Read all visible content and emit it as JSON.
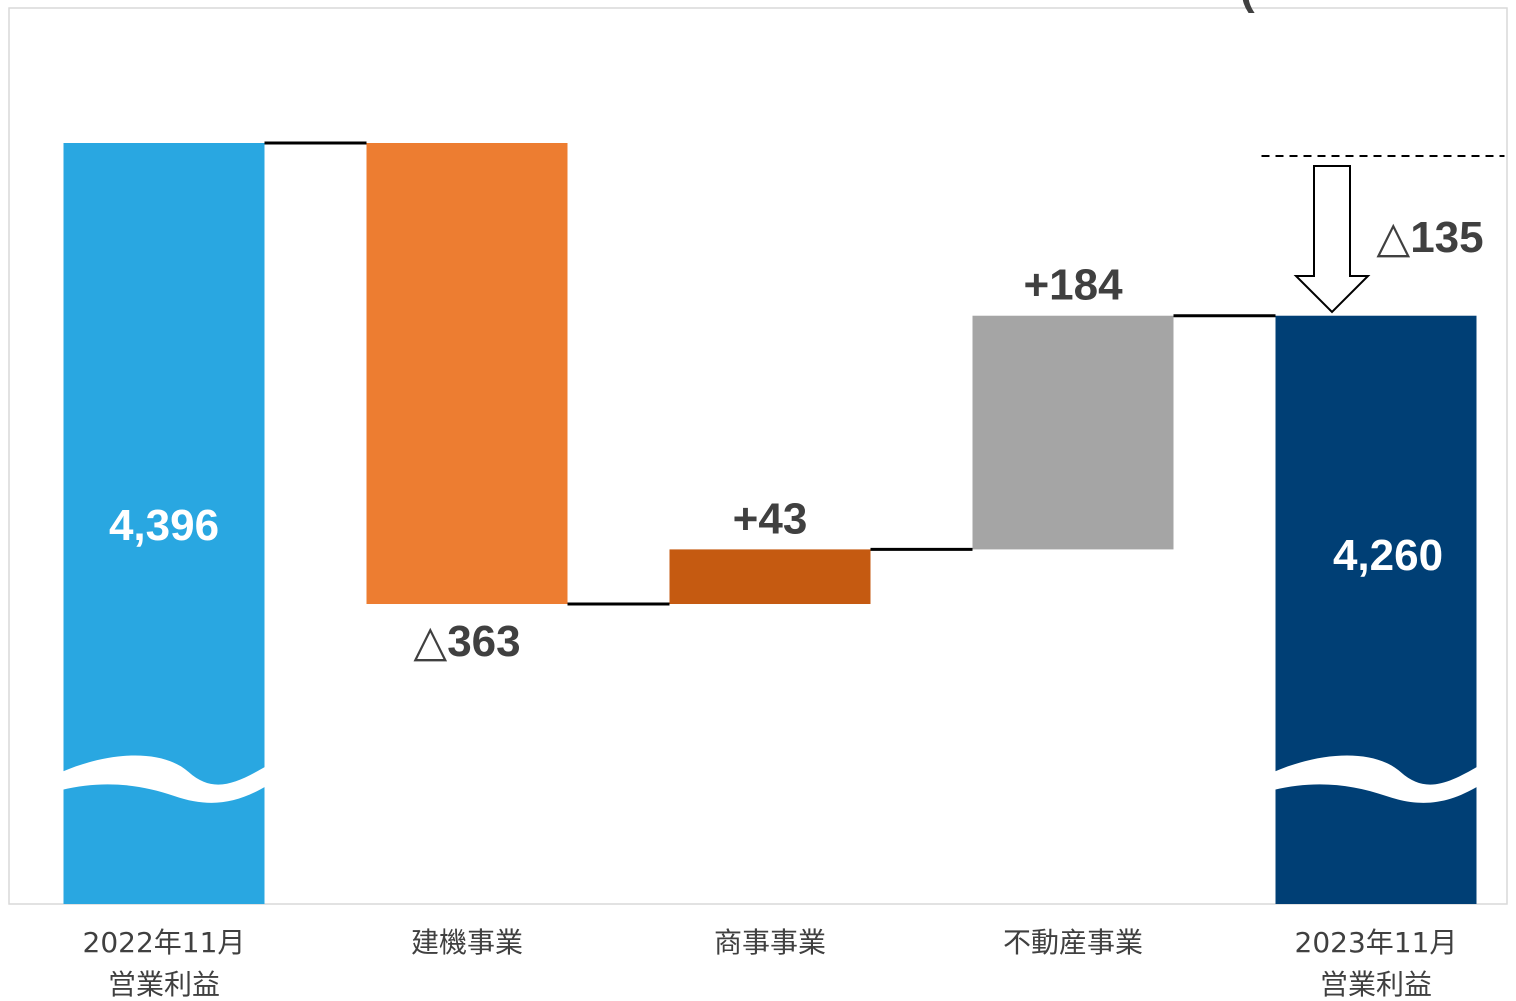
{
  "chart_data": {
    "type": "bar",
    "subtype": "waterfall",
    "y_axis_broken": true,
    "grid": false,
    "legend": "none",
    "categories": [
      {
        "line1": "2022年11月",
        "line2": "営業利益"
      },
      {
        "line1": "建機事業",
        "line2": ""
      },
      {
        "line1": "商事事業",
        "line2": ""
      },
      {
        "line1": "不動産事業",
        "line2": ""
      },
      {
        "line1": "2023年11月",
        "line2": "営業利益"
      }
    ],
    "bars": [
      {
        "kind": "total",
        "value": 4396,
        "label": "4,396",
        "color": "#29A7E1",
        "label_color": "#ffffff"
      },
      {
        "kind": "delta",
        "value": -363,
        "label": "△363",
        "color": "#ED7D31",
        "label_color": "#404040"
      },
      {
        "kind": "delta",
        "value": 43,
        "label": "+43",
        "color": "#C55A11",
        "label_color": "#404040"
      },
      {
        "kind": "delta",
        "value": 184,
        "label": "+184",
        "color": "#A5A5A5",
        "label_color": "#404040"
      },
      {
        "kind": "total",
        "value": 4260,
        "label": "4,260",
        "color": "#003F75",
        "label_color": "#ffffff"
      }
    ],
    "total_change": {
      "value": -135,
      "label": "△135",
      "color": "#404040"
    },
    "header_partial_text": "(",
    "frame_color": "#D9D9D9",
    "connector_color": "#000000"
  }
}
